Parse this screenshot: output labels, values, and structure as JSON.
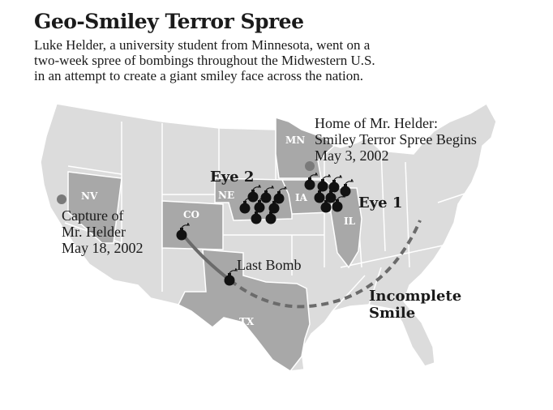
{
  "title": "Geo-Smiley Terror Spree",
  "subtitle": "Luke Helder, a university student from Minnesota, went on a two-week spree of bombings throughout the Midwestern U.S. in an attempt to create a giant smiley face across the nation.",
  "states": {
    "mn": "MN",
    "nv": "NV",
    "co": "CO",
    "ne": "NE",
    "ia": "IA",
    "il": "IL",
    "tx": "TX"
  },
  "annotations": {
    "home_line1": "Home of Mr. Helder:",
    "home_line2": "Smiley Terror Spree Begins",
    "home_line3": "May 3, 2002",
    "capture_line1": "Capture of",
    "capture_line2": "Mr. Helder",
    "capture_line3": "May 18, 2002",
    "eye2": "Eye 2",
    "eye1": "Eye 1",
    "last_bomb": "Last Bomb",
    "incomplete_line1": "Incomplete",
    "incomplete_line2": "Smile"
  },
  "colors": {
    "land": "#dcdcdc",
    "highlight": "#a8a8a8",
    "border": "#ffffff",
    "bomb": "#111111",
    "path": "#6b6b6b",
    "dot": "#7a7a7a"
  }
}
